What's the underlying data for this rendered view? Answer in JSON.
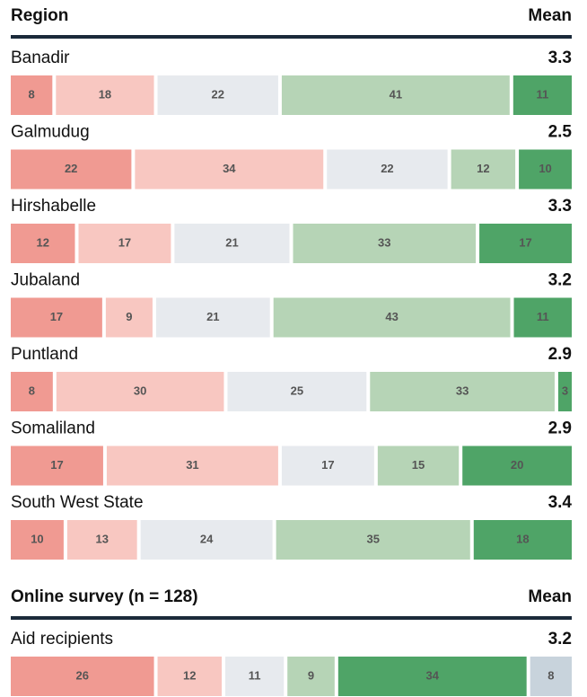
{
  "chart_data": [
    {
      "type": "bar",
      "orientation": "horizontal",
      "stacked": true,
      "category_header": "Region",
      "value_header": "Mean",
      "categories": [
        "Banadir",
        "Galmudug",
        "Hirshabelle",
        "Jubaland",
        "Puntland",
        "Somaliland",
        "South West State"
      ],
      "means": [
        3.3,
        2.5,
        3.3,
        3.2,
        2.9,
        2.9,
        3.4
      ],
      "series": [
        {
          "color": "#f09a92",
          "values": [
            8,
            22,
            12,
            17,
            8,
            17,
            10
          ]
        },
        {
          "color": "#f8c7c1",
          "values": [
            18,
            34,
            17,
            9,
            30,
            31,
            13
          ]
        },
        {
          "color": "#e7eaee",
          "values": [
            22,
            22,
            21,
            21,
            25,
            17,
            24
          ]
        },
        {
          "color": "#b6d4b6",
          "values": [
            41,
            12,
            33,
            43,
            33,
            15,
            35
          ]
        },
        {
          "color": "#4fa467",
          "values": [
            11,
            10,
            17,
            11,
            3,
            20,
            18
          ]
        }
      ]
    },
    {
      "type": "bar",
      "orientation": "horizontal",
      "stacked": true,
      "category_header": "Online survey (n = 128)",
      "value_header": "Mean",
      "categories": [
        "Aid recipients"
      ],
      "means": [
        3.2
      ],
      "series": [
        {
          "color": "#f09a92",
          "values": [
            26
          ]
        },
        {
          "color": "#f8c7c1",
          "values": [
            12
          ]
        },
        {
          "color": "#e7eaee",
          "values": [
            11
          ]
        },
        {
          "color": "#b6d4b6",
          "values": [
            9
          ]
        },
        {
          "color": "#4fa467",
          "values": [
            34
          ]
        },
        {
          "color": "#c8d3dc",
          "values": [
            8
          ]
        }
      ]
    }
  ]
}
